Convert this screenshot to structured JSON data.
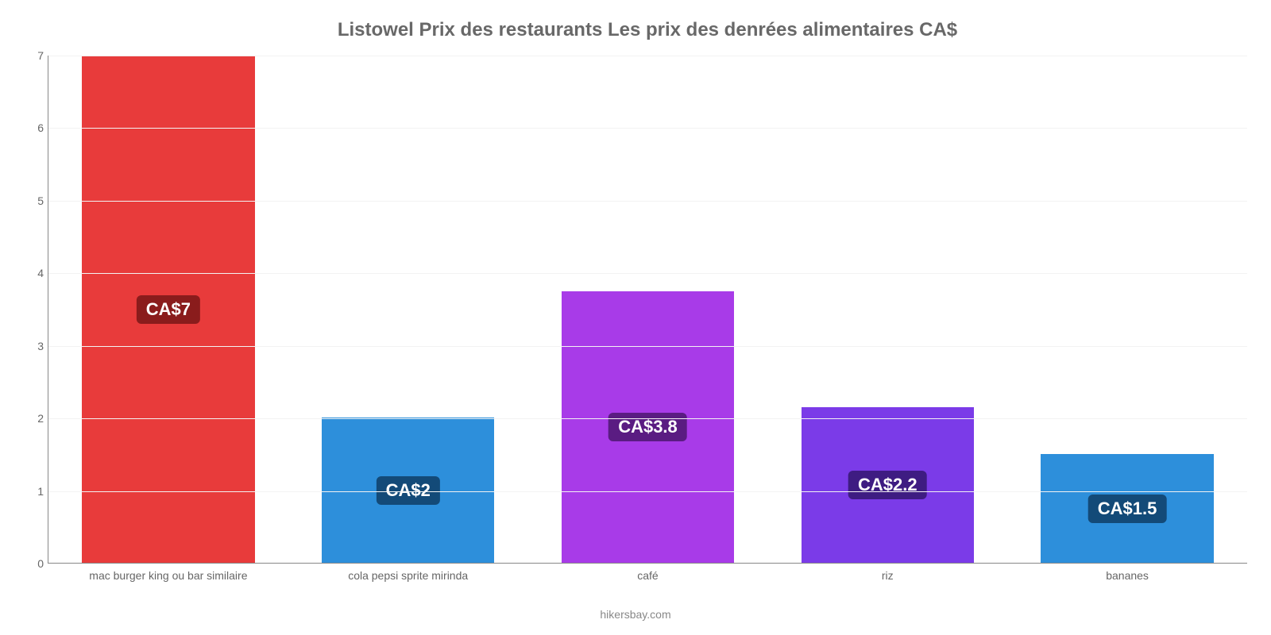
{
  "chart": {
    "type": "bar",
    "title": "Listowel Prix des restaurants Les prix des denrées alimentaires CA$",
    "title_fontsize": 24,
    "title_color": "#686868",
    "credit": "hikersbay.com",
    "credit_fontsize": 14,
    "credit_color": "#888888",
    "background_color": "#ffffff",
    "grid_color": "#f3f3f3",
    "axis_color": "#888888",
    "ylim": [
      0,
      7
    ],
    "yticks": [
      0,
      1,
      2,
      3,
      4,
      5,
      6,
      7
    ],
    "ytick_fontsize": 14,
    "ytick_color": "#666666",
    "xlabel_fontsize": 14,
    "xlabel_color": "#666666",
    "bar_width_pct": 72,
    "value_label_fontsize": 22,
    "value_label_text_color": "#ffffff",
    "value_label_radius": 6,
    "categories": [
      "mac burger king ou bar similaire",
      "cola pepsi sprite mirinda",
      "café",
      "riz",
      "bananes"
    ],
    "values": [
      7,
      2,
      3.75,
      2.15,
      1.5
    ],
    "value_labels": [
      "CA$7",
      "CA$2",
      "CA$3.8",
      "CA$2.2",
      "CA$1.5"
    ],
    "bar_colors": [
      "#e83b3b",
      "#2d8fdb",
      "#a83be8",
      "#7b3be8",
      "#2d8fdb"
    ],
    "label_bg_colors": [
      "#8a1c1c",
      "#134a78",
      "#5a1c82",
      "#3e1c82",
      "#134a78"
    ]
  }
}
